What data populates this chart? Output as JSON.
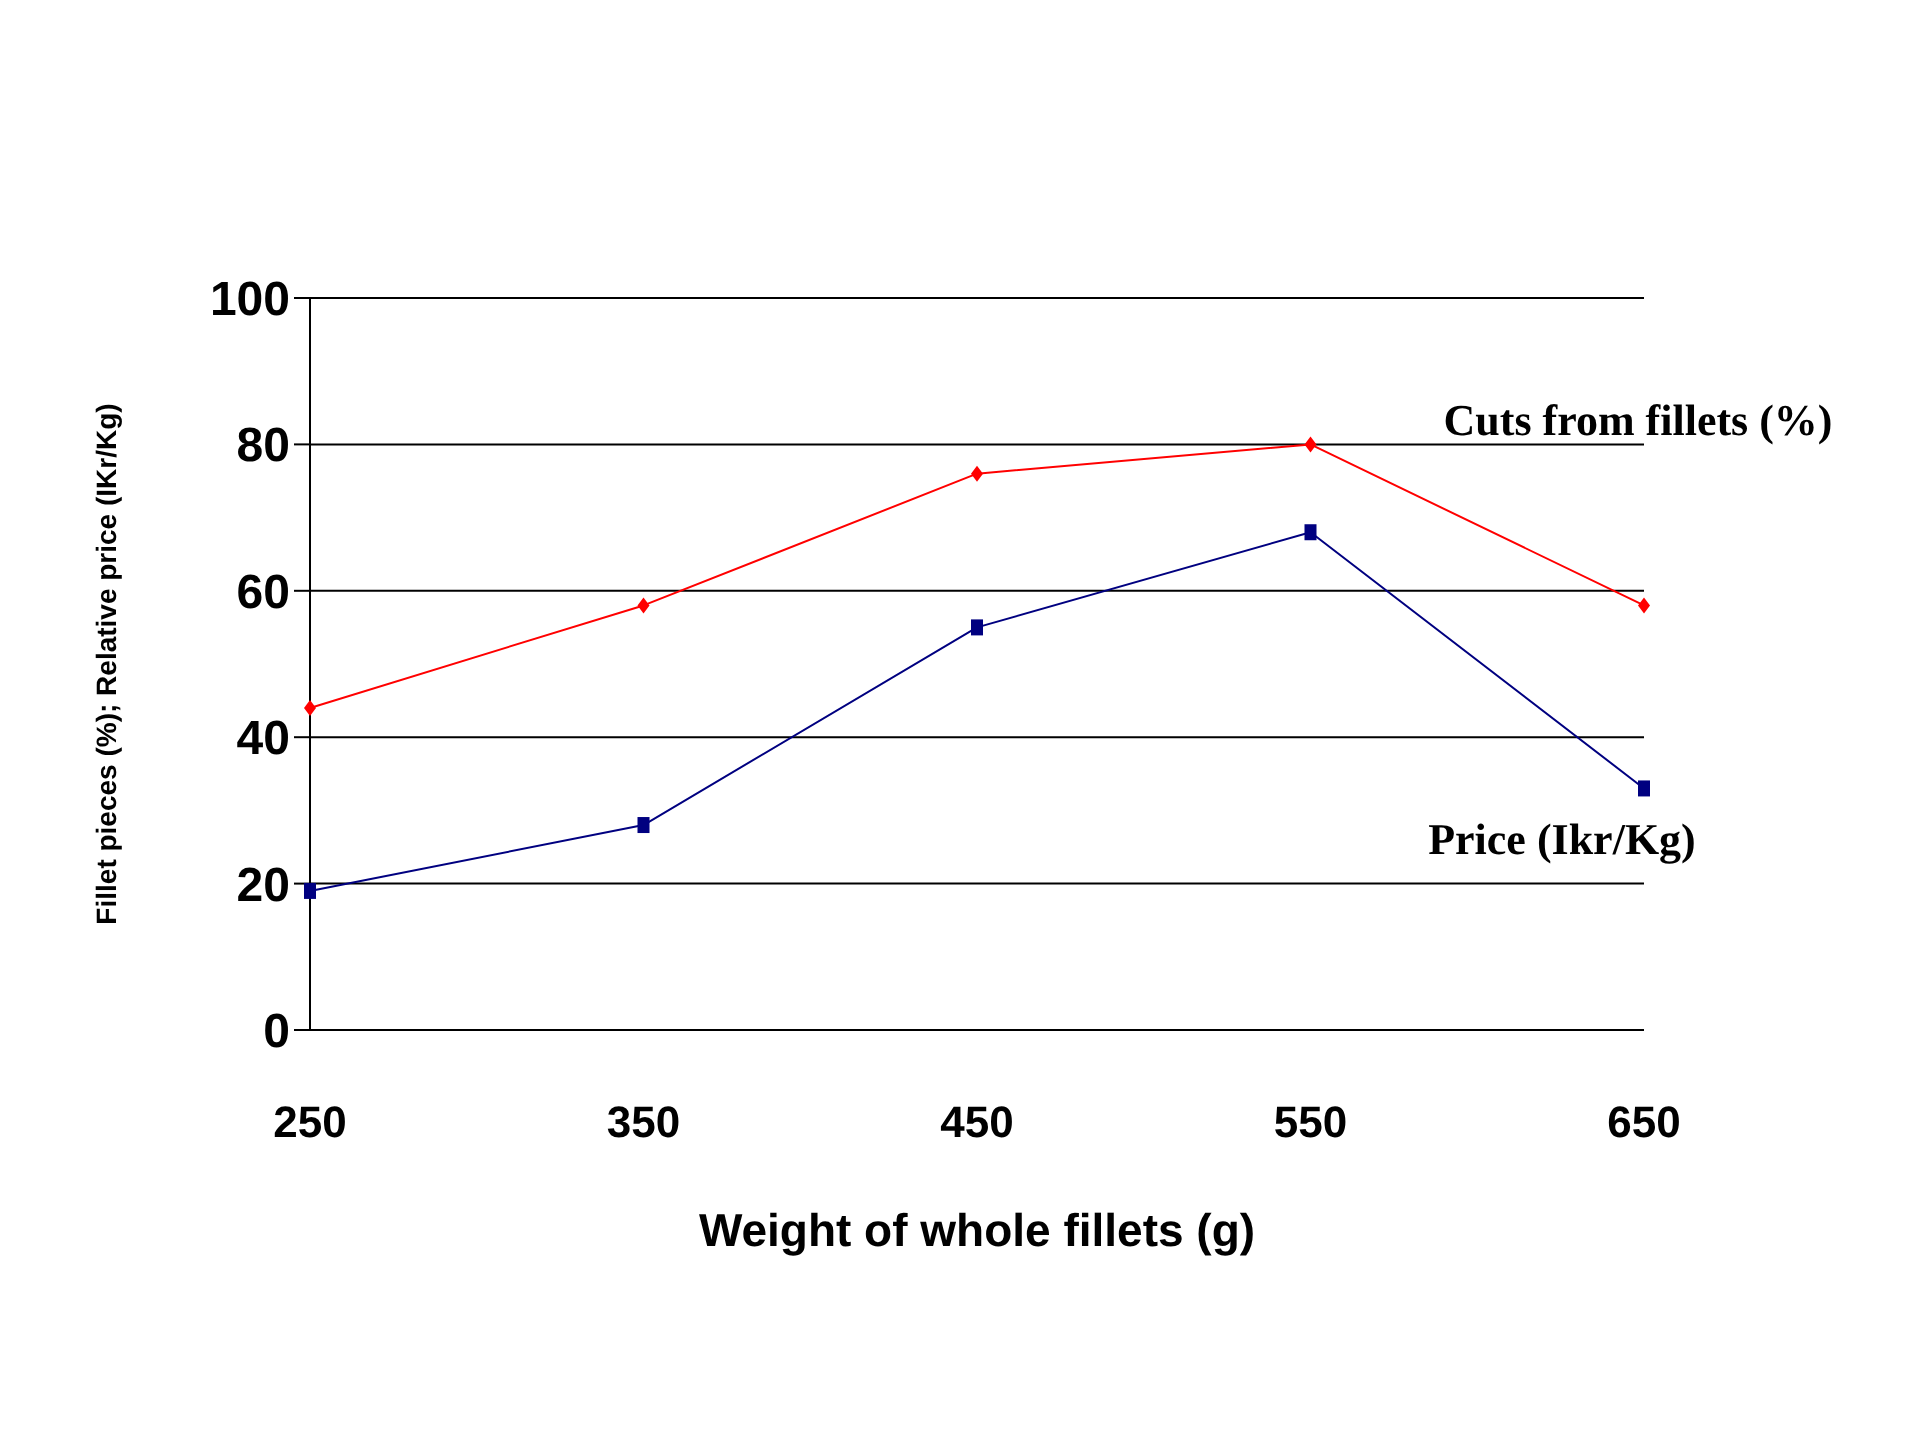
{
  "chart_data": {
    "type": "line",
    "xlabel": "Weight of whole  fillets (g)",
    "ylabel": "Fillet pieces (%); Relative  price (IKr/Kg)",
    "categories": [
      "250",
      "350",
      "450",
      "550",
      "650"
    ],
    "series": [
      {
        "name": "Cuts from fillets (%)",
        "color": "#ff0000",
        "marker": "diamond",
        "values": [
          44,
          58,
          76,
          80,
          58
        ]
      },
      {
        "name": "Price (Ikr/Kg)",
        "color": "#000080",
        "marker": "square",
        "values": [
          19,
          28,
          55,
          68,
          33
        ]
      }
    ],
    "ylim": [
      0,
      100
    ],
    "yticks": [
      0,
      20,
      40,
      60,
      80,
      100
    ],
    "grid": "y",
    "legend": false
  }
}
